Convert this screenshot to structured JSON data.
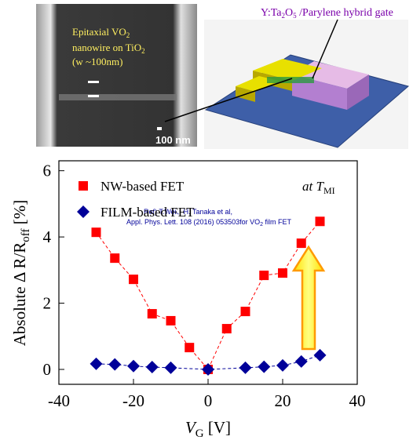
{
  "figure": {
    "sem_caption": {
      "line1": "Epitaxial VO",
      "line1_sub": "2",
      "line2": "nanowire on TiO",
      "line2_sub": "2",
      "line3": "(w ~100nm)"
    },
    "scale_bar": "100 nm",
    "gate_label": {
      "pre": "Y:Ta",
      "sub1": "2",
      "mid": "O",
      "sub2": "5",
      "post": " /Parylene hybrid gate"
    }
  },
  "chart_data": {
    "type": "scatter",
    "xlabel": {
      "main": "V",
      "sub": "G",
      "tail": " [V]"
    },
    "ylabel": {
      "main": "Absolute Δ R/R",
      "sub": "off",
      "tail": " [%]"
    },
    "annotation": {
      "text": "at T",
      "sub": "MI"
    },
    "reference": {
      "line1": "Ref)  T.Wei、H. Tanaka et al,",
      "line2": "Appl. Phys. Lett. 108 (2016) 053503for VO",
      "line2_sub": "2",
      "line2_tail": " film FET"
    },
    "xlim": [
      -40,
      40
    ],
    "xticks": [
      -40,
      -20,
      0,
      20,
      40
    ],
    "ylim": [
      -0.45,
      6.3
    ],
    "yticks": [
      0,
      2,
      4,
      6
    ],
    "legend": "upper left",
    "series": [
      {
        "name": "NW-based FET",
        "color": "#ff0000",
        "marker": "square",
        "x": [
          -30,
          -25,
          -20,
          -15,
          -10,
          -5,
          0,
          5,
          10,
          15,
          20,
          25,
          30
        ],
        "values": [
          4.14,
          3.36,
          2.72,
          1.68,
          1.47,
          0.66,
          0,
          1.23,
          1.75,
          2.84,
          2.91,
          3.81,
          4.47
        ]
      },
      {
        "name": "FILM-based FET",
        "color": "#000099",
        "marker": "diamond",
        "x": [
          -30,
          -25,
          -20,
          -15,
          -10,
          0,
          10,
          15,
          20,
          25,
          30
        ],
        "values": [
          0.17,
          0.15,
          0.1,
          0.07,
          0.05,
          0,
          0.05,
          0.08,
          0.12,
          0.24,
          0.43
        ]
      }
    ]
  }
}
